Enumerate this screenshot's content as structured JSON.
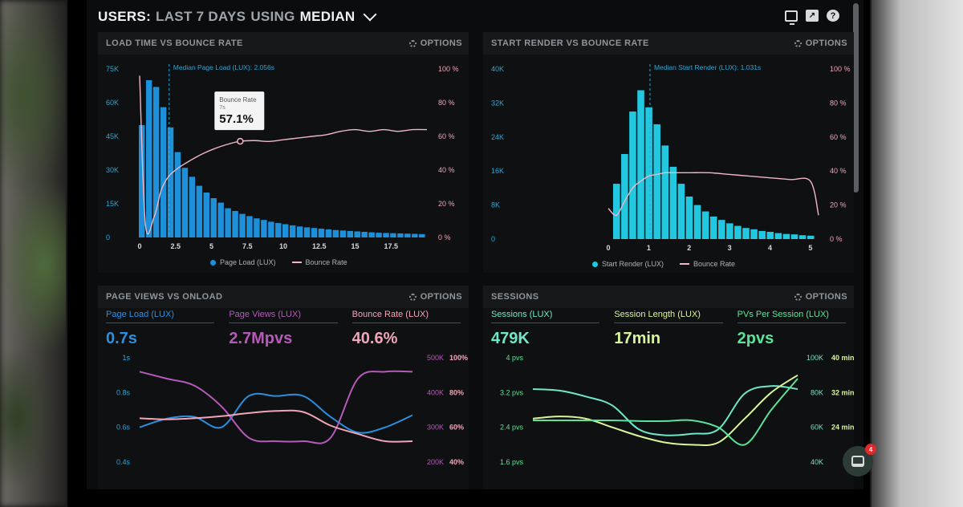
{
  "header": {
    "title_prefix": "USERS:",
    "title_range": "LAST 7 DAYS",
    "title_using": "USING",
    "title_metric": "MEDIAN"
  },
  "header_icons": [
    "monitor-icon",
    "share-icon",
    "help-icon"
  ],
  "panels": {
    "load_time": {
      "title": "LOAD TIME VS BOUNCE RATE",
      "options": "OPTIONS",
      "median_label": "Median Page Load (LUX): 2.056s",
      "tooltip": {
        "label": "Bounce Rate",
        "sub": "7s",
        "value": "57.1%"
      },
      "legend": [
        "Page Load (LUX)",
        "Bounce Rate"
      ]
    },
    "start_render": {
      "title": "START RENDER VS BOUNCE RATE",
      "options": "OPTIONS",
      "median_label": "Median Start Render (LUX): 1.031s",
      "legend": [
        "Start Render (LUX)",
        "Bounce Rate"
      ]
    },
    "page_views": {
      "title": "PAGE VIEWS VS ONLOAD",
      "options": "OPTIONS",
      "kpis": [
        {
          "label": "Page Load (LUX)",
          "value": "0.7s",
          "color": "#2b8fe0"
        },
        {
          "label": "Page Views (LUX)",
          "value": "2.7Mpvs",
          "color": "#b55ab8"
        },
        {
          "label": "Bounce Rate (LUX)",
          "value": "40.6%",
          "color": "#f2a5b8"
        }
      ]
    },
    "sessions": {
      "title": "SESSIONS",
      "options": "OPTIONS",
      "kpis": [
        {
          "label": "Sessions (LUX)",
          "value": "479K",
          "color": "#6fe7c9"
        },
        {
          "label": "Session Length (LUX)",
          "value": "17min",
          "color": "#d8f59a"
        },
        {
          "label": "PVs Per Session (LUX)",
          "value": "2pvs",
          "color": "#5be39a"
        }
      ]
    }
  },
  "chat": {
    "badge": "4"
  },
  "chart_data": [
    {
      "type": "bar",
      "name": "load_time",
      "x_ticks": [
        "0",
        "2.5",
        "5",
        "7.5",
        "10",
        "12.5",
        "15",
        "17.5"
      ],
      "y_left_ticks": [
        "0",
        "15K",
        "30K",
        "45K",
        "60K",
        "75K"
      ],
      "y_right_ticks": [
        "0 %",
        "20 %",
        "40 %",
        "60 %",
        "80 %",
        "100 %"
      ],
      "ylim": [
        0,
        75000
      ],
      "bin_width": 0.5,
      "series": [
        {
          "name": "Page Load (LUX)",
          "color": "#1e8fd9",
          "values": [
            50000,
            70000,
            67000,
            58000,
            49000,
            38000,
            31000,
            27000,
            23000,
            20000,
            17500,
            15500,
            13000,
            11800,
            10500,
            9500,
            8500,
            7800,
            7000,
            6400,
            5900,
            5400,
            4900,
            4500,
            4200,
            3900,
            3600,
            3300,
            3100,
            2900,
            2700,
            2500,
            2300,
            2100,
            2000,
            1900,
            1800,
            1700,
            1600,
            1500
          ]
        },
        {
          "name": "Bounce Rate",
          "color": "#f0b8c4",
          "x": [
            0,
            0.4,
            1,
            1.5,
            2,
            2.5,
            3,
            4,
            5,
            6,
            7,
            8,
            9,
            10,
            11,
            12,
            13,
            14,
            15,
            16,
            17,
            18,
            19,
            20
          ],
          "values": [
            96,
            8,
            12,
            28,
            36,
            40,
            43,
            48,
            52,
            55,
            57.1,
            57.5,
            57,
            58,
            59,
            60,
            61,
            63,
            64,
            63,
            64,
            63,
            64,
            64
          ]
        }
      ]
    },
    {
      "type": "bar",
      "name": "start_render",
      "x_ticks": [
        "0",
        "1",
        "2",
        "3",
        "4",
        "5"
      ],
      "y_left_ticks": [
        "0",
        "8K",
        "16K",
        "24K",
        "32K",
        "40K"
      ],
      "y_right_ticks": [
        "0 %",
        "20 %",
        "40 %",
        "60 %",
        "80 %",
        "100 %"
      ],
      "ylim": [
        0,
        40000
      ],
      "bin_width": 0.2,
      "series": [
        {
          "name": "Start Render (LUX)",
          "color": "#22c8e0",
          "values": [
            13000,
            20000,
            30000,
            35000,
            31000,
            27000,
            22000,
            17000,
            13000,
            10000,
            8000,
            6500,
            5300,
            4500,
            3700,
            3100,
            2600,
            2300,
            1900,
            1700,
            1400,
            1200,
            1100,
            900,
            800
          ]
        },
        {
          "name": "Bounce Rate",
          "color": "#f0b8c4",
          "x": [
            0,
            0.2,
            0.4,
            0.6,
            0.8,
            1,
            1.2,
            1.4,
            1.6,
            2,
            2.5,
            3,
            3.5,
            4,
            4.5,
            5,
            5.2
          ],
          "values": [
            18,
            14,
            22,
            30,
            34,
            37,
            38,
            39,
            39,
            39,
            39,
            38,
            37,
            36,
            35,
            34,
            14
          ]
        }
      ]
    },
    {
      "type": "line",
      "name": "page_views",
      "y_left_ticks": [
        "1s",
        "0.8s",
        "0.6s",
        "0.4s"
      ],
      "y_right_ticks": [
        "500K",
        "400K",
        "300K",
        "200K"
      ],
      "y_right2_ticks": [
        "100%",
        "80%",
        "60%",
        "40%"
      ],
      "series": [
        {
          "name": "Page Load (LUX)",
          "color": "#2b8fe0",
          "x": [
            0,
            1,
            2,
            3,
            4,
            5,
            6,
            7,
            8,
            9,
            10
          ],
          "values": [
            0.6,
            0.65,
            0.66,
            0.6,
            0.78,
            0.78,
            0.78,
            0.66,
            0.57,
            0.6,
            0.67
          ]
        },
        {
          "name": "Page Views (LUX)",
          "color": "#b55ab8",
          "x": [
            0,
            1,
            2,
            3,
            4,
            5,
            6,
            7,
            8,
            9,
            10
          ],
          "values": [
            460,
            440,
            420,
            360,
            270,
            260,
            260,
            270,
            440,
            460,
            460
          ]
        },
        {
          "name": "Bounce Rate (LUX)",
          "color": "#f2a5b8",
          "x": [
            0,
            1,
            2,
            3,
            4,
            5,
            6,
            7,
            8,
            9,
            10
          ],
          "values": [
            42,
            41,
            42,
            44,
            47,
            49,
            48,
            35,
            27,
            20,
            20
          ]
        }
      ]
    },
    {
      "type": "line",
      "name": "sessions",
      "y_left_ticks": [
        "4 pvs",
        "3.2 pvs",
        "2.4 pvs",
        "1.6 pvs"
      ],
      "y_right_ticks": [
        "100K",
        "80K",
        "60K",
        "40K"
      ],
      "y_right2_ticks": [
        "40 min",
        "32 min",
        "24 min"
      ],
      "series": [
        {
          "name": "Sessions (LUX)",
          "color": "#6fe7c9",
          "x": [
            0,
            1,
            2,
            3,
            4,
            5,
            6,
            7,
            8,
            9,
            10
          ],
          "values": [
            79,
            78,
            74,
            68,
            52,
            48,
            49,
            52,
            76,
            81,
            79
          ]
        },
        {
          "name": "Session Length (LUX)",
          "color": "#d8f59a",
          "x": [
            0,
            1,
            2,
            3,
            4,
            5,
            6,
            7,
            8,
            9,
            10
          ],
          "values": [
            20,
            21,
            20,
            16,
            12,
            9,
            8,
            9,
            20,
            32,
            40
          ]
        },
        {
          "name": "PVs Per Session (LUX)",
          "color": "#5be39a",
          "x": [
            0,
            1,
            2,
            3,
            4,
            5,
            6,
            7,
            8,
            9,
            10
          ],
          "values": [
            2.4,
            2.4,
            2.4,
            2.4,
            2.38,
            2.38,
            2.4,
            2.2,
            1.7,
            2.7,
            3.6
          ]
        }
      ]
    }
  ]
}
